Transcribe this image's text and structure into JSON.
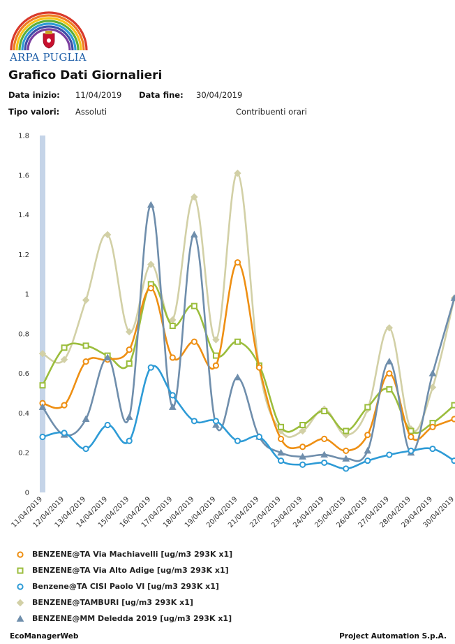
{
  "header": {
    "org_name": "ARPA PUGLIA",
    "title": "Grafico Dati Giornalieri",
    "start_label": "Data inizio:",
    "start_value": "11/04/2019",
    "end_label": "Data fine:",
    "end_value": "30/04/2019",
    "type_label": "Tipo valori:",
    "type_value": "Assoluti",
    "contrib_label": "Contribuenti orari"
  },
  "footer": {
    "left": "EcoManagerWeb",
    "right": "Project Automation S.p.A."
  },
  "chart_data": {
    "type": "line",
    "title": "",
    "xlabel": "",
    "ylabel": "",
    "ylim": [
      0,
      1.8
    ],
    "yticks": [
      "0",
      "0.2",
      "0.4",
      "0.6",
      "0.8",
      "1",
      "1.2",
      "1.4",
      "1.6",
      "1.8"
    ],
    "grid": false,
    "legend_position": "bottom",
    "categories": [
      "11/04/2019",
      "12/04/2019",
      "13/04/2019",
      "14/04/2019",
      "15/04/2019",
      "16/04/2019",
      "17/04/2019",
      "18/04/2019",
      "19/04/2019",
      "20/04/2019",
      "21/04/2019",
      "22/04/2019",
      "23/04/2019",
      "24/04/2019",
      "25/04/2019",
      "26/04/2019",
      "27/04/2019",
      "28/04/2019",
      "29/04/2019",
      "30/04/2019"
    ],
    "series": [
      {
        "name": "BENZENE@TAMBURI [ug/m3 293K x1]",
        "color": "#d2d0a6",
        "marker": "diamond",
        "values": [
          0.7,
          0.67,
          0.97,
          1.3,
          0.81,
          1.15,
          0.87,
          1.49,
          0.77,
          1.61,
          0.63,
          0.31,
          0.31,
          0.42,
          0.29,
          0.42,
          0.83,
          0.32,
          0.53,
          0.98
        ]
      },
      {
        "name": "BENZENE@TA Via Alto Adige [ug/m3 293K x1]",
        "color": "#9bbd3c",
        "marker": "square",
        "values": [
          0.54,
          0.73,
          0.74,
          0.69,
          0.65,
          1.05,
          0.84,
          0.94,
          0.69,
          0.76,
          0.64,
          0.33,
          0.34,
          0.41,
          0.31,
          0.43,
          0.52,
          0.31,
          0.35,
          0.44
        ]
      },
      {
        "name": "BENZENE@TA Via Machiavelli [ug/m3 293K x1]",
        "color": "#ee8f13",
        "marker": "circle",
        "values": [
          0.45,
          0.44,
          0.66,
          0.67,
          0.72,
          1.03,
          0.68,
          0.76,
          0.64,
          1.16,
          0.63,
          0.27,
          0.23,
          0.27,
          0.21,
          0.29,
          0.6,
          0.28,
          0.33,
          0.37
        ]
      },
      {
        "name": "BENZENE@MM Deledda 2019 [ug/m3 293K x1]",
        "color": "#6f8eac",
        "marker": "triangle",
        "values": [
          0.43,
          0.29,
          0.37,
          0.68,
          0.38,
          1.45,
          0.43,
          1.3,
          0.34,
          0.58,
          0.28,
          0.2,
          0.18,
          0.19,
          0.17,
          0.21,
          0.66,
          0.2,
          0.6,
          0.98
        ]
      },
      {
        "name": "Benzene@TA CISI Paolo VI [ug/m3 293K x1]",
        "color": "#2e9bd6",
        "marker": "circle",
        "values": [
          0.28,
          0.3,
          0.22,
          0.34,
          0.26,
          0.63,
          0.49,
          0.36,
          0.36,
          0.26,
          0.28,
          0.16,
          0.14,
          0.15,
          0.12,
          0.16,
          0.19,
          0.21,
          0.22,
          0.16
        ]
      }
    ],
    "legend_order": [
      "BENZENE@TA Via Machiavelli [ug/m3 293K x1]",
      "BENZENE@TA Via Alto Adige [ug/m3 293K x1]",
      "Benzene@TA CISI Paolo VI [ug/m3 293K x1]",
      "BENZENE@TAMBURI [ug/m3 293K x1]",
      "BENZENE@MM Deledda 2019 [ug/m3 293K x1]"
    ]
  }
}
